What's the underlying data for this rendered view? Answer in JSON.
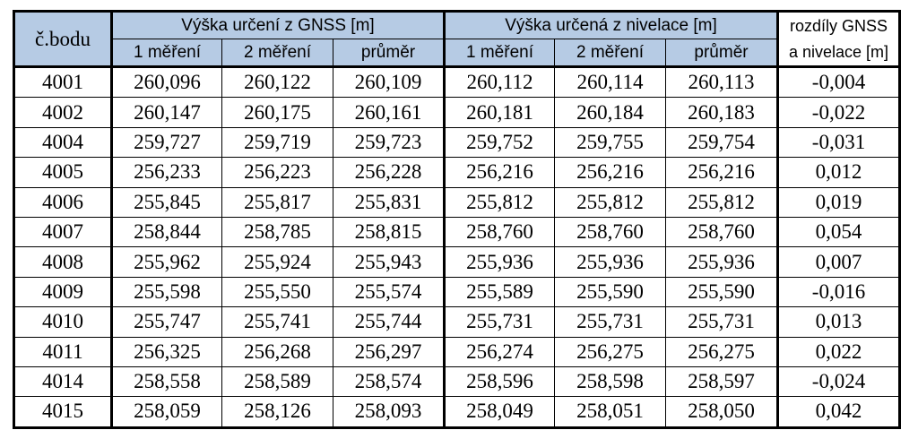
{
  "headers": {
    "point": "č.bodu",
    "gnss_group": "Výška určení z GNSS [m]",
    "level_group": "Výška určená z nivelace [m]",
    "diff_line1": "rozdíly GNSS",
    "diff_line2": "a nivelace [m]",
    "sub": [
      "1 měření",
      "2 měření",
      "průměr",
      "1 měření",
      "2 měření",
      "průměr"
    ]
  },
  "rows": [
    [
      "4001",
      "260,096",
      "260,122",
      "260,109",
      "260,112",
      "260,114",
      "260,113",
      "-0,004"
    ],
    [
      "4002",
      "260,147",
      "260,175",
      "260,161",
      "260,181",
      "260,184",
      "260,183",
      "-0,022"
    ],
    [
      "4004",
      "259,727",
      "259,719",
      "259,723",
      "259,752",
      "259,755",
      "259,754",
      "-0,031"
    ],
    [
      "4005",
      "256,233",
      "256,223",
      "256,228",
      "256,216",
      "256,216",
      "256,216",
      "0,012"
    ],
    [
      "4006",
      "255,845",
      "255,817",
      "255,831",
      "255,812",
      "255,812",
      "255,812",
      "0,019"
    ],
    [
      "4007",
      "258,844",
      "258,785",
      "258,815",
      "258,760",
      "258,760",
      "258,760",
      "0,054"
    ],
    [
      "4008",
      "255,962",
      "255,924",
      "255,943",
      "255,936",
      "255,936",
      "255,936",
      "0,007"
    ],
    [
      "4009",
      "255,598",
      "255,550",
      "255,574",
      "255,589",
      "255,590",
      "255,590",
      "-0,016"
    ],
    [
      "4010",
      "255,747",
      "255,741",
      "255,744",
      "255,731",
      "255,731",
      "255,731",
      "0,013"
    ],
    [
      "4011",
      "256,325",
      "256,268",
      "256,297",
      "256,274",
      "256,275",
      "256,275",
      "0,022"
    ],
    [
      "4014",
      "258,558",
      "258,589",
      "258,574",
      "258,596",
      "258,598",
      "258,597",
      "-0,024"
    ],
    [
      "4015",
      "258,059",
      "258,126",
      "258,093",
      "258,049",
      "258,051",
      "258,050",
      "0,042"
    ]
  ]
}
